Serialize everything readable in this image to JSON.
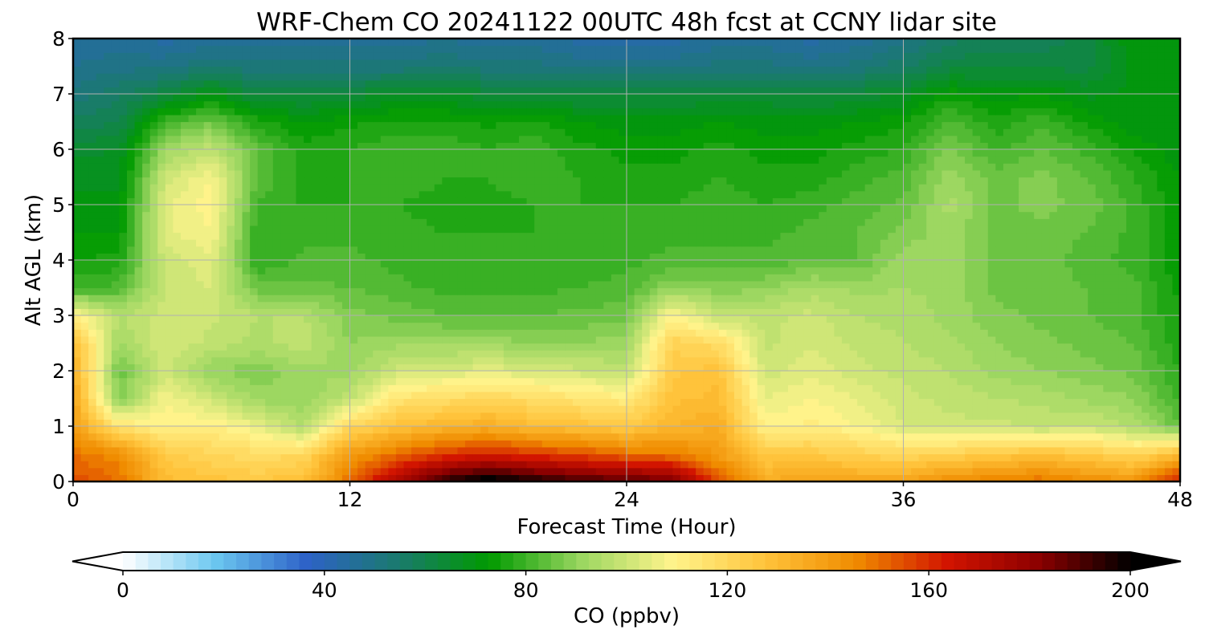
{
  "chart_data": {
    "type": "heatmap",
    "title": "WRF-Chem CO  20241122 00UTC 48h fcst at CCNY lidar site",
    "xlabel": "Forecast Time (Hour)",
    "ylabel": "Alt AGL (km)",
    "xlim": [
      0,
      48
    ],
    "ylim": [
      0,
      8
    ],
    "xticks": [
      "0",
      "12",
      "24",
      "36",
      "48"
    ],
    "yticks": [
      "0",
      "1",
      "2",
      "3",
      "4",
      "5",
      "6",
      "7",
      "8"
    ],
    "grid": true,
    "colorbar": {
      "label": "CO  (ppbv)",
      "range": [
        0,
        200
      ],
      "ticks": [
        "0",
        "40",
        "80",
        "120",
        "160",
        "200"
      ],
      "extend": "both",
      "colormap": [
        "#ffffff",
        "#6cc8f0",
        "#2e62c8",
        "#1a7a6e",
        "#009a00",
        "#9ad660",
        "#fff48c",
        "#ffc43c",
        "#f08c00",
        "#d21400",
        "#8c0000",
        "#000000"
      ]
    },
    "x": [
      0,
      2,
      4,
      6,
      8,
      10,
      12,
      14,
      16,
      18,
      20,
      22,
      24,
      26,
      28,
      30,
      32,
      34,
      36,
      38,
      40,
      42,
      44,
      46,
      48
    ],
    "y": [
      0,
      0.5,
      1,
      1.5,
      2,
      2.5,
      3,
      3.5,
      4,
      4.5,
      5,
      5.5,
      6,
      6.5,
      7,
      7.5,
      8
    ],
    "values": [
      [
        155,
        150,
        130,
        128,
        125,
        130,
        150,
        175,
        195,
        205,
        198,
        192,
        190,
        185,
        155,
        135,
        140,
        138,
        138,
        145,
        148,
        150,
        145,
        142,
        165
      ],
      [
        150,
        145,
        125,
        120,
        118,
        120,
        140,
        150,
        158,
        162,
        158,
        155,
        150,
        148,
        140,
        125,
        125,
        122,
        120,
        122,
        125,
        128,
        125,
        120,
        130
      ],
      [
        140,
        115,
        110,
        112,
        105,
        95,
        120,
        128,
        132,
        135,
        130,
        128,
        125,
        132,
        135,
        110,
        112,
        108,
        102,
        100,
        100,
        98,
        100,
        95,
        85
      ],
      [
        138,
        88,
        108,
        100,
        92,
        90,
        98,
        115,
        118,
        120,
        118,
        115,
        112,
        128,
        130,
        105,
        108,
        105,
        100,
        98,
        96,
        95,
        92,
        90,
        80
      ],
      [
        135,
        85,
        100,
        90,
        88,
        92,
        92,
        100,
        102,
        104,
        102,
        100,
        98,
        125,
        128,
        100,
        104,
        100,
        98,
        96,
        92,
        90,
        88,
        86,
        78
      ],
      [
        130,
        92,
        102,
        98,
        95,
        98,
        90,
        92,
        92,
        92,
        90,
        90,
        92,
        122,
        118,
        98,
        102,
        98,
        96,
        94,
        90,
        88,
        86,
        84,
        76
      ],
      [
        110,
        96,
        100,
        100,
        96,
        96,
        88,
        86,
        84,
        83,
        84,
        85,
        86,
        110,
        98,
        98,
        100,
        96,
        95,
        92,
        88,
        86,
        84,
        82,
        75
      ],
      [
        80,
        82,
        100,
        102,
        85,
        85,
        84,
        82,
        80,
        80,
        80,
        81,
        82,
        90,
        88,
        90,
        94,
        92,
        93,
        92,
        86,
        86,
        84,
        82,
        74
      ],
      [
        75,
        76,
        100,
        104,
        78,
        82,
        82,
        80,
        79,
        78,
        79,
        80,
        80,
        82,
        82,
        82,
        84,
        84,
        92,
        92,
        86,
        86,
        82,
        80,
        72
      ],
      [
        72,
        72,
        104,
        108,
        78,
        80,
        80,
        79,
        78,
        78,
        78,
        79,
        80,
        80,
        80,
        80,
        82,
        84,
        88,
        92,
        86,
        86,
        84,
        80,
        72
      ],
      [
        70,
        70,
        104,
        110,
        80,
        78,
        78,
        78,
        77,
        77,
        78,
        78,
        78,
        78,
        80,
        78,
        80,
        82,
        85,
        94,
        86,
        88,
        86,
        80,
        72
      ],
      [
        68,
        68,
        100,
        108,
        84,
        76,
        78,
        80,
        78,
        78,
        80,
        78,
        76,
        76,
        78,
        76,
        76,
        80,
        82,
        92,
        86,
        88,
        84,
        78,
        72
      ],
      [
        65,
        66,
        92,
        98,
        84,
        76,
        78,
        80,
        80,
        78,
        80,
        76,
        74,
        74,
        76,
        74,
        74,
        76,
        78,
        88,
        80,
        84,
        80,
        74,
        70
      ],
      [
        58,
        60,
        80,
        86,
        76,
        72,
        74,
        76,
        76,
        74,
        76,
        72,
        70,
        70,
        72,
        70,
        70,
        72,
        74,
        82,
        76,
        80,
        74,
        70,
        70
      ],
      [
        52,
        56,
        62,
        70,
        62,
        62,
        64,
        66,
        66,
        64,
        64,
        62,
        62,
        62,
        64,
        64,
        62,
        64,
        66,
        74,
        70,
        72,
        68,
        70,
        72
      ],
      [
        48,
        50,
        50,
        54,
        52,
        52,
        52,
        52,
        54,
        52,
        52,
        50,
        50,
        50,
        52,
        52,
        50,
        52,
        56,
        62,
        62,
        62,
        62,
        70,
        72
      ],
      [
        46,
        46,
        44,
        46,
        46,
        46,
        46,
        46,
        48,
        46,
        46,
        44,
        44,
        44,
        46,
        46,
        44,
        46,
        50,
        56,
        58,
        58,
        62,
        72,
        72
      ]
    ]
  }
}
